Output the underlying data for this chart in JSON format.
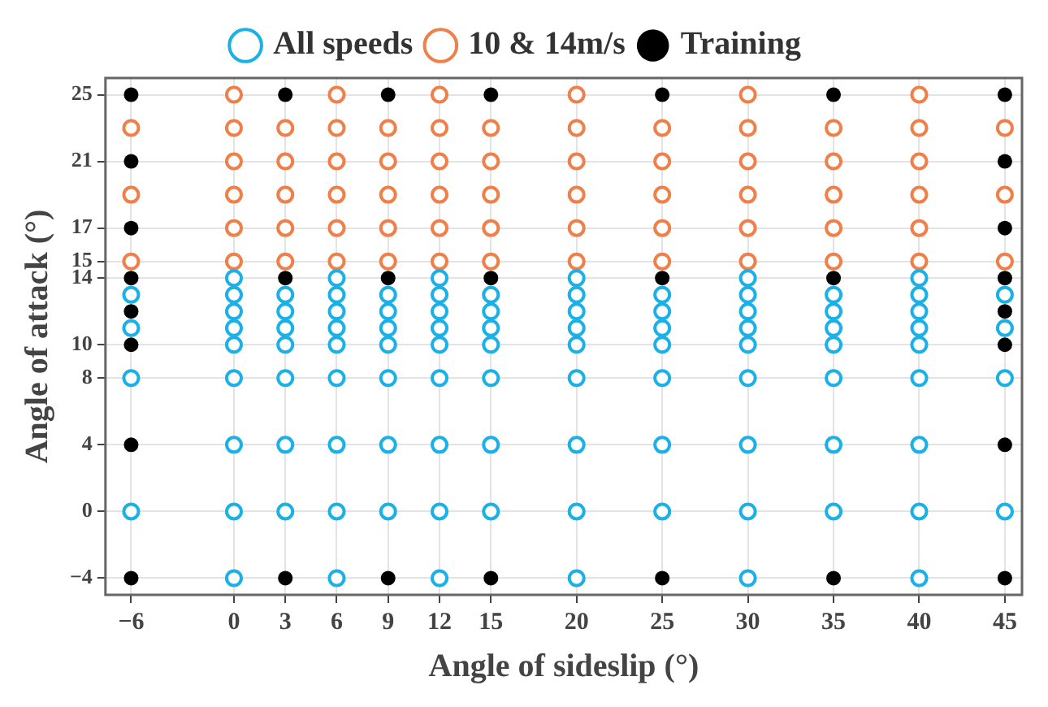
{
  "chart_data": {
    "type": "scatter",
    "xlabel": "Angle of sideslip (°)",
    "ylabel": "Angle of attack (°)",
    "xlim": [
      -7.5,
      46
    ],
    "ylim": [
      -5,
      26
    ],
    "xticks": [
      -6,
      0,
      3,
      6,
      9,
      12,
      15,
      20,
      25,
      30,
      35,
      40,
      45
    ],
    "yticks": [
      -4,
      0,
      4,
      8,
      10,
      14,
      15,
      17,
      21,
      25
    ],
    "grid": true,
    "legend": "top",
    "marker": "circle",
    "series": [
      {
        "name": "All speeds",
        "color": "#1ab0e8",
        "x": [
          -6,
          -6,
          -6,
          -6,
          0,
          0,
          0,
          0,
          0,
          0,
          0,
          0,
          0,
          3,
          3,
          3,
          3,
          3,
          3,
          3,
          6,
          6,
          6,
          6,
          6,
          6,
          6,
          6,
          6,
          9,
          9,
          9,
          9,
          9,
          9,
          9,
          12,
          12,
          12,
          12,
          12,
          12,
          12,
          12,
          12,
          15,
          15,
          15,
          15,
          15,
          15,
          15,
          20,
          20,
          20,
          20,
          20,
          20,
          20,
          20,
          20,
          25,
          25,
          25,
          25,
          25,
          25,
          25,
          30,
          30,
          30,
          30,
          30,
          30,
          30,
          30,
          30,
          35,
          35,
          35,
          35,
          35,
          35,
          35,
          40,
          40,
          40,
          40,
          40,
          40,
          40,
          40,
          40,
          45,
          45,
          45,
          45
        ],
        "values": [
          0,
          8,
          11,
          13,
          -4,
          0,
          4,
          8,
          10,
          11,
          12,
          13,
          14,
          0,
          4,
          8,
          10,
          11,
          12,
          13,
          -4,
          0,
          4,
          8,
          10,
          11,
          12,
          13,
          14,
          0,
          4,
          8,
          10,
          11,
          12,
          13,
          -4,
          0,
          4,
          8,
          10,
          11,
          12,
          13,
          14,
          0,
          4,
          8,
          10,
          11,
          12,
          13,
          -4,
          0,
          4,
          8,
          10,
          11,
          12,
          13,
          14,
          0,
          4,
          8,
          10,
          11,
          12,
          13,
          -4,
          0,
          4,
          8,
          10,
          11,
          12,
          13,
          14,
          0,
          4,
          8,
          10,
          11,
          12,
          13,
          -4,
          0,
          4,
          8,
          10,
          11,
          12,
          13,
          14,
          0,
          8,
          11,
          13
        ]
      },
      {
        "name": "10 & 14m/s",
        "color": "#f0804a",
        "x": [
          -6,
          -6,
          -6,
          0,
          0,
          0,
          0,
          0,
          0,
          3,
          3,
          3,
          3,
          3,
          6,
          6,
          6,
          6,
          6,
          6,
          9,
          9,
          9,
          9,
          9,
          12,
          12,
          12,
          12,
          12,
          12,
          15,
          15,
          15,
          15,
          15,
          20,
          20,
          20,
          20,
          20,
          20,
          25,
          25,
          25,
          25,
          25,
          30,
          30,
          30,
          30,
          30,
          30,
          35,
          35,
          35,
          35,
          35,
          40,
          40,
          40,
          40,
          40,
          40,
          45,
          45,
          45
        ],
        "values": [
          15,
          19,
          23,
          15,
          17,
          19,
          21,
          23,
          25,
          15,
          17,
          19,
          21,
          23,
          15,
          17,
          19,
          21,
          23,
          25,
          15,
          17,
          19,
          21,
          23,
          15,
          17,
          19,
          21,
          23,
          25,
          15,
          17,
          19,
          21,
          23,
          15,
          17,
          19,
          21,
          23,
          25,
          15,
          17,
          19,
          21,
          23,
          15,
          17,
          19,
          21,
          23,
          25,
          15,
          17,
          19,
          21,
          23,
          15,
          17,
          19,
          21,
          23,
          25,
          15,
          19,
          23
        ]
      },
      {
        "name": "Training",
        "color": "#000000",
        "x": [
          -6,
          -6,
          -6,
          -6,
          -6,
          -6,
          -6,
          -6,
          3,
          3,
          3,
          9,
          9,
          9,
          15,
          15,
          15,
          25,
          25,
          25,
          35,
          35,
          35,
          45,
          45,
          45,
          45,
          45,
          45,
          45,
          45
        ],
        "values": [
          -4,
          4,
          10,
          12,
          14,
          17,
          21,
          25,
          -4,
          14,
          25,
          -4,
          14,
          25,
          -4,
          14,
          25,
          -4,
          14,
          25,
          -4,
          14,
          25,
          -4,
          4,
          10,
          12,
          14,
          17,
          21,
          25
        ]
      }
    ]
  }
}
